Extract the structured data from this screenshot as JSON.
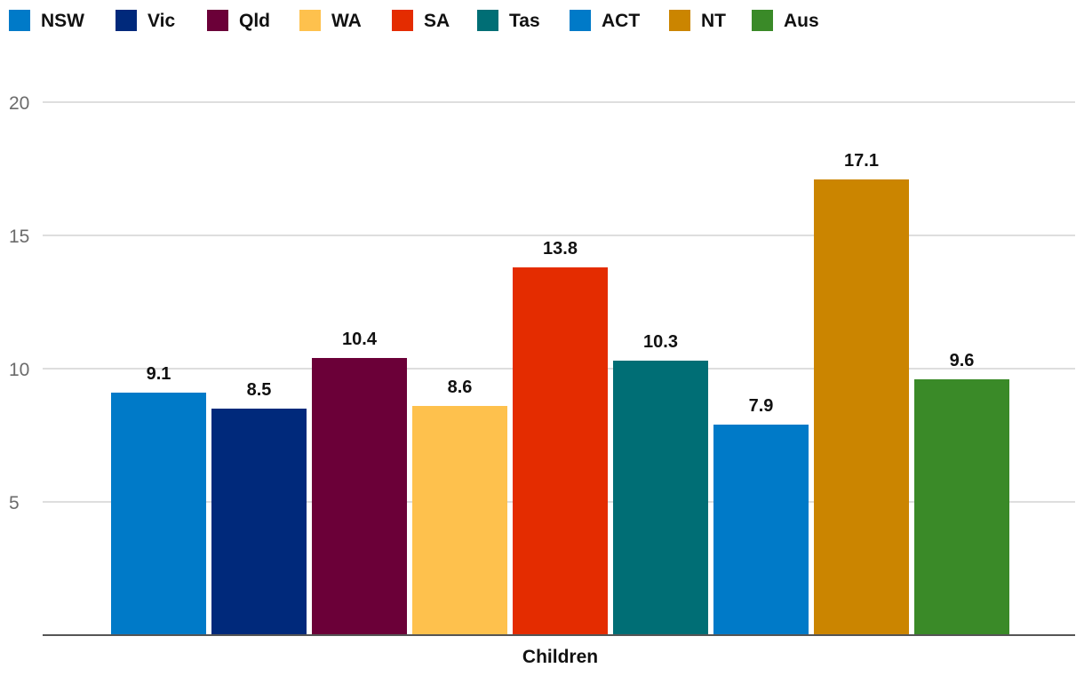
{
  "chart_data": {
    "type": "bar",
    "title": "",
    "xlabel": "",
    "ylabel": "",
    "categories": [
      "Children"
    ],
    "ylim": [
      0,
      20
    ],
    "yticks": [
      5,
      10,
      15,
      20
    ],
    "grid": true,
    "legend_position": "top-left",
    "series": [
      {
        "name": "NSW",
        "values": [
          9.1
        ],
        "color": "#007AC8",
        "label": "9.1"
      },
      {
        "name": "Vic",
        "values": [
          8.5
        ],
        "color": "#00297B",
        "label": "8.5"
      },
      {
        "name": "Qld",
        "values": [
          10.4
        ],
        "color": "#6B0038",
        "label": "10.4"
      },
      {
        "name": "WA",
        "values": [
          8.6
        ],
        "color": "#FEC14D",
        "label": "8.6"
      },
      {
        "name": "SA",
        "values": [
          13.8
        ],
        "color": "#E42C00",
        "label": "13.8"
      },
      {
        "name": "Tas",
        "values": [
          10.3
        ],
        "color": "#006E75",
        "label": "10.3"
      },
      {
        "name": "ACT",
        "values": [
          7.9
        ],
        "color": "#007AC8",
        "label": "7.9"
      },
      {
        "name": "NT",
        "values": [
          17.1
        ],
        "color": "#CB8500",
        "label": "17.1"
      },
      {
        "name": "Aus",
        "values": [
          9.6
        ],
        "color": "#3A8A28",
        "label": "9.6"
      }
    ]
  }
}
